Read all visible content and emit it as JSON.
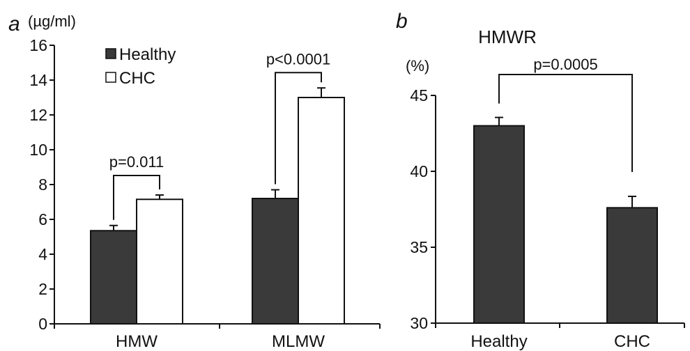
{
  "chart_data": [
    {
      "panel": "a",
      "type": "bar",
      "unit_label": "(µg/ml)",
      "categories": [
        "HMW",
        "MLMW"
      ],
      "series": [
        {
          "name": "Healthy",
          "values": [
            5.35,
            7.2
          ],
          "errors": [
            0.3,
            0.5
          ],
          "color": "#3a3a3a"
        },
        {
          "name": "CHC",
          "values": [
            7.15,
            13.0
          ],
          "errors": [
            0.25,
            0.55
          ],
          "color": "#ffffff"
        }
      ],
      "ylim": [
        0,
        16
      ],
      "yticks": [
        0,
        2,
        4,
        6,
        8,
        10,
        12,
        14,
        16
      ],
      "legend_position": "top-left",
      "annotations": [
        {
          "category_index": 0,
          "text": "p=0.011"
        },
        {
          "category_index": 1,
          "text": "p<0.0001"
        }
      ]
    },
    {
      "panel": "b",
      "type": "bar",
      "title": "HMWR",
      "unit_label": "(%)",
      "categories": [
        "Healthy",
        "CHC"
      ],
      "values": [
        43.0,
        37.6
      ],
      "errors": [
        0.55,
        0.75
      ],
      "color": "#3a3a3a",
      "ylim": [
        30,
        45
      ],
      "yticks": [
        30,
        35,
        40,
        45
      ],
      "annotations": [
        {
          "text": "p=0.0005"
        }
      ]
    }
  ]
}
